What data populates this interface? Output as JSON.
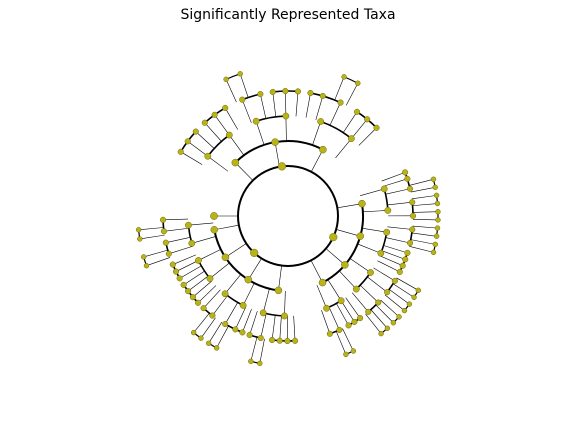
{
  "title": "Significantly Represented Taxa",
  "colors": {
    "node_fill": "#b8b31a",
    "node_stroke": "#6b6600",
    "edge": "#000000"
  },
  "tree": {
    "type": "radial-cladogram",
    "levels": 6,
    "clades": [
      {
        "id": "A",
        "start": 208,
        "end": 318,
        "terminals": 19
      },
      {
        "id": "B",
        "start": 338,
        "end": 432,
        "terminals": 30
      },
      {
        "id": "C",
        "start": 445,
        "end": 540,
        "terminals": 27
      }
    ]
  }
}
